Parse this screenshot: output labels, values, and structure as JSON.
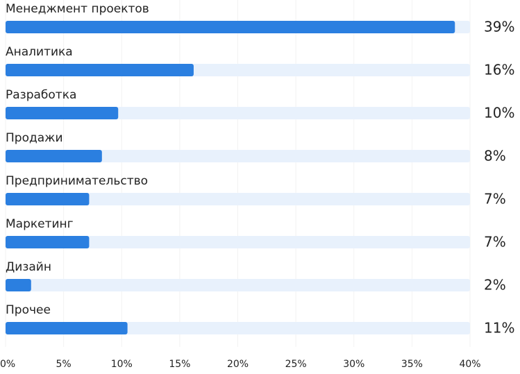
{
  "chart_data": {
    "type": "bar",
    "orientation": "horizontal",
    "categories": [
      "Менеджмент проектов",
      "Аналитика",
      "Разработка",
      "Продажи",
      "Предпринимательство",
      "Маркетинг",
      "Дизайн",
      "Прочее"
    ],
    "values": [
      38.7,
      16.2,
      9.7,
      8.3,
      7.2,
      7.2,
      2.2,
      10.5
    ],
    "value_labels": [
      "39%",
      "16%",
      "10%",
      "8%",
      "7%",
      "7%",
      "2%",
      "11%"
    ],
    "color": "#2b7fe0",
    "track_color": "#e8f1fc",
    "xlim": [
      0,
      40
    ],
    "xticks": [
      {
        "value": 0,
        "label": "0%"
      },
      {
        "value": 5,
        "label": "5%"
      },
      {
        "value": 10,
        "label": "10%"
      },
      {
        "value": 15,
        "label": "15%"
      },
      {
        "value": 20,
        "label": "20%"
      },
      {
        "value": 25,
        "label": "25%"
      },
      {
        "value": 30,
        "label": "30%"
      },
      {
        "value": 35,
        "label": "35%"
      },
      {
        "value": 40,
        "label": "40%"
      }
    ],
    "grid": true
  }
}
